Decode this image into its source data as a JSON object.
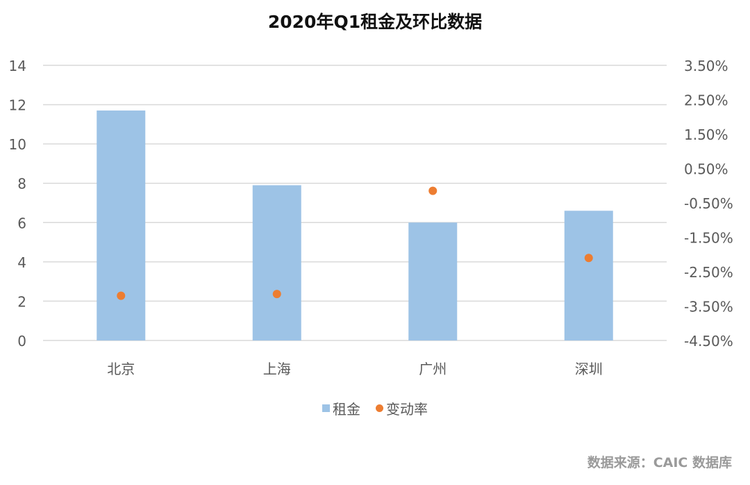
{
  "chart_data": {
    "type": "bar",
    "title": "2020年Q1租金及环比数据",
    "categories": [
      "北京",
      "上海",
      "广州",
      "深圳"
    ],
    "series": [
      {
        "name": "租金",
        "kind": "bar",
        "axis": "left",
        "color": "#9DC3E6",
        "values": [
          11.7,
          7.9,
          6.0,
          6.6
        ]
      },
      {
        "name": "变动率",
        "kind": "scatter",
        "axis": "right",
        "color": "#ED7D31",
        "values": [
          -3.2,
          -3.15,
          -0.15,
          -2.1
        ],
        "unit": "%"
      }
    ],
    "left_axis": {
      "min": 0,
      "max": 14,
      "step": 2,
      "ticks": [
        "0",
        "2",
        "4",
        "6",
        "8",
        "10",
        "12",
        "14"
      ]
    },
    "right_axis": {
      "min": -4.5,
      "max": 3.5,
      "step": 1,
      "ticks": [
        "-4.50%",
        "-3.50%",
        "-2.50%",
        "-1.50%",
        "-0.50%",
        "0.50%",
        "1.50%",
        "2.50%",
        "3.50%"
      ]
    },
    "xlabel": "",
    "ylabel": "",
    "grid": true,
    "legend_position": "bottom"
  },
  "legend": [
    {
      "label": "租金",
      "marker": "square",
      "color": "#9DC3E6"
    },
    {
      "label": "变动率",
      "marker": "circle",
      "color": "#ED7D31"
    }
  ],
  "source": "数据来源：CAIC 数据库",
  "colors": {
    "grid": "#D9D9D9",
    "axis_text": "#595959",
    "title": "#111111",
    "source": "#9A9A9A"
  }
}
